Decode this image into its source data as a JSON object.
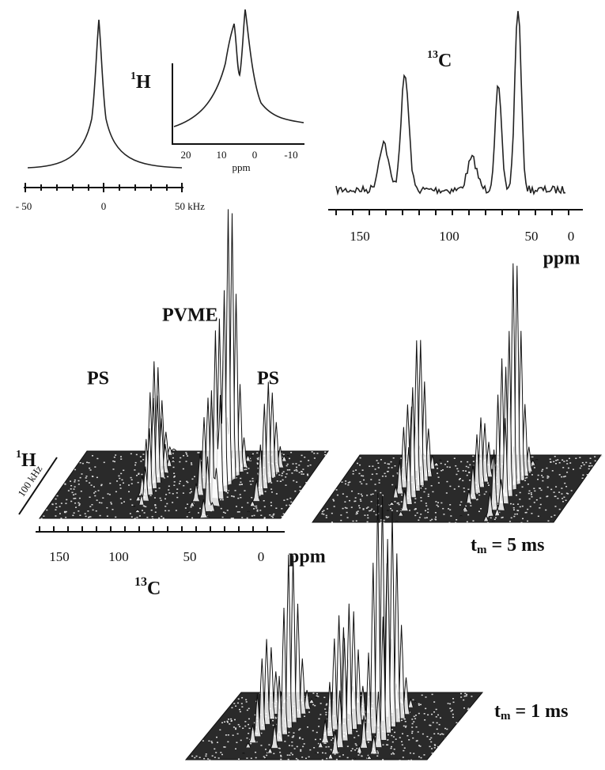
{
  "panels": {
    "h1_spectrum": {
      "nucleus": {
        "mass": "1",
        "symbol": "H"
      },
      "axis_ticks": [
        "- 50",
        "0",
        "50 kHz"
      ]
    },
    "h1_inset": {
      "axis_ticks": [
        "20",
        "10",
        "0",
        "-10"
      ],
      "axis_unit": "ppm"
    },
    "c13_spectrum": {
      "nucleus": {
        "mass": "13",
        "symbol": "C"
      },
      "axis_ticks": [
        "150",
        "100",
        "50",
        "0"
      ],
      "axis_unit": "ppm"
    },
    "map_2d": {
      "peak_labels": [
        "PVME",
        "PS",
        "PS"
      ],
      "y_nucleus": {
        "mass": "1",
        "symbol": "H"
      },
      "y_range": "100 kHz",
      "x_ticks": [
        "150",
        "100",
        "50",
        "0"
      ],
      "x_unit": "ppm",
      "x_nucleus": {
        "mass": "13",
        "symbol": "C"
      }
    },
    "map_5ms": {
      "mixing_time": {
        "symbol": "t",
        "subscript": "m",
        "rest": "= 5 ms"
      }
    },
    "map_1ms": {
      "mixing_time": {
        "symbol": "t",
        "subscript": "m",
        "rest": "= 1 ms"
      }
    }
  }
}
